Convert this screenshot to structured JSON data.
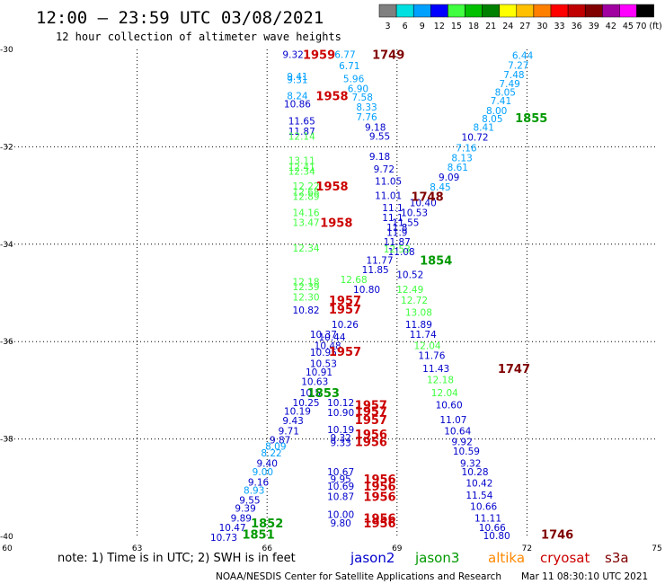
{
  "header": {
    "title": "12:00 – 23:59 UTC 03/08/2021",
    "subtitle": "12 hour collection of altimeter wave heights"
  },
  "colorbar": {
    "labels": [
      "3",
      "6",
      "9",
      "12",
      "15",
      "18",
      "21",
      "24",
      "27",
      "30",
      "33",
      "36",
      "39",
      "42",
      "45",
      "70 (ft)"
    ],
    "colors": [
      "#808080",
      "#00e0e0",
      "#00a0ff",
      "#0000ff",
      "#40ff40",
      "#00c000",
      "#008000",
      "#ffff00",
      "#ffc000",
      "#ff8000",
      "#ff0000",
      "#c00000",
      "#800000",
      "#a000a0",
      "#ff00ff",
      "#000000"
    ]
  },
  "footer": {
    "note": "note: 1) Time is in UTC; 2) SWH is in feet",
    "credit": "NOAA/NESDIS Center for Satellite Applications and Research",
    "timestamp": "Mar 11 08:30:10 UTC 2021"
  },
  "legend": [
    {
      "name": "jason2",
      "color": "#0000cc"
    },
    {
      "name": "jason3",
      "color": "#009900"
    },
    {
      "name": "altika",
      "color": "#ff8800"
    },
    {
      "name": "cryosat",
      "color": "#cc0000"
    },
    {
      "name": "s3a",
      "color": "#800000"
    }
  ],
  "chart_data": {
    "type": "scatter",
    "xlim": [
      60,
      75
    ],
    "ylim": [
      -40,
      -30
    ],
    "xticks": [
      "60",
      "63",
      "66",
      "69",
      "72",
      "75"
    ],
    "yticks": [
      "-30",
      "-32",
      "-34",
      "-36",
      "-38",
      "-40"
    ],
    "ytick_values": [
      -30,
      -32,
      -34,
      -36,
      -38,
      -40
    ],
    "xtick_values": [
      60,
      63,
      66,
      69,
      72,
      75
    ],
    "grid": true,
    "time_labels": [
      {
        "t": "1959",
        "x": 67.2,
        "y": -30.1,
        "c": "#cc0000"
      },
      {
        "t": "1749",
        "x": 68.8,
        "y": -30.1,
        "c": "#800000"
      },
      {
        "t": "1958",
        "x": 67.5,
        "y": -30.95,
        "c": "#cc0000"
      },
      {
        "t": "1855",
        "x": 72.1,
        "y": -31.4,
        "c": "#009900"
      },
      {
        "t": "1958",
        "x": 67.5,
        "y": -32.8,
        "c": "#cc0000"
      },
      {
        "t": "1748",
        "x": 69.7,
        "y": -33.02,
        "c": "#800000"
      },
      {
        "t": "1958",
        "x": 67.6,
        "y": -33.55,
        "c": "#cc0000"
      },
      {
        "t": "1854",
        "x": 69.9,
        "y": -34.33,
        "c": "#009900"
      },
      {
        "t": "1957",
        "x": 67.8,
        "y": -35.15,
        "c": "#cc0000"
      },
      {
        "t": "1957",
        "x": 67.8,
        "y": -35.33,
        "c": "#cc0000"
      },
      {
        "t": "1957",
        "x": 67.8,
        "y": -36.2,
        "c": "#cc0000"
      },
      {
        "t": "1747",
        "x": 71.7,
        "y": -36.55,
        "c": "#800000"
      },
      {
        "t": "1853",
        "x": 67.3,
        "y": -37.05,
        "c": "#009900"
      },
      {
        "t": "1957",
        "x": 68.4,
        "y": -37.3,
        "c": "#cc0000"
      },
      {
        "t": "1957",
        "x": 68.4,
        "y": -37.43,
        "c": "#cc0000"
      },
      {
        "t": "1957",
        "x": 68.4,
        "y": -37.6,
        "c": "#cc0000"
      },
      {
        "t": "1956",
        "x": 68.4,
        "y": -37.9,
        "c": "#cc0000"
      },
      {
        "t": "1956",
        "x": 68.4,
        "y": -38.05,
        "c": "#cc0000"
      },
      {
        "t": "1956",
        "x": 68.6,
        "y": -38.82,
        "c": "#cc0000"
      },
      {
        "t": "1956",
        "x": 68.6,
        "y": -38.97,
        "c": "#cc0000"
      },
      {
        "t": "1956",
        "x": 68.6,
        "y": -39.18,
        "c": "#cc0000"
      },
      {
        "t": "1956",
        "x": 68.6,
        "y": -39.62,
        "c": "#cc0000"
      },
      {
        "t": "1956",
        "x": 68.6,
        "y": -39.72,
        "c": "#cc0000"
      },
      {
        "t": "1852",
        "x": 66.0,
        "y": -39.72,
        "c": "#009900"
      },
      {
        "t": "1851",
        "x": 65.8,
        "y": -39.95,
        "c": "#009900"
      },
      {
        "t": "1746",
        "x": 72.7,
        "y": -39.95,
        "c": "#800000"
      }
    ],
    "swh_labels": [
      {
        "t": "9.32",
        "x": 66.6,
        "y": -30.1,
        "c": "#0000cc"
      },
      {
        "t": "6.77",
        "x": 67.8,
        "y": -30.1,
        "c": "#00a0ff"
      },
      {
        "t": "6.71",
        "x": 67.9,
        "y": -30.33,
        "c": "#00a0ff"
      },
      {
        "t": "9.41",
        "x": 66.7,
        "y": -30.55,
        "c": "#00a0ff"
      },
      {
        "t": "9.31",
        "x": 66.7,
        "y": -30.62,
        "c": "#00a0ff"
      },
      {
        "t": "5.96",
        "x": 68.0,
        "y": -30.6,
        "c": "#00a0ff"
      },
      {
        "t": "6.90",
        "x": 68.1,
        "y": -30.8,
        "c": "#00a0ff"
      },
      {
        "t": "8.24",
        "x": 66.7,
        "y": -30.95,
        "c": "#00a0ff"
      },
      {
        "t": "7.58",
        "x": 68.2,
        "y": -30.98,
        "c": "#00a0ff"
      },
      {
        "t": "10.86",
        "x": 66.7,
        "y": -31.12,
        "c": "#0000cc"
      },
      {
        "t": "8.33",
        "x": 68.3,
        "y": -31.18,
        "c": "#00a0ff"
      },
      {
        "t": "7.76",
        "x": 68.3,
        "y": -31.38,
        "c": "#00a0ff"
      },
      {
        "t": "11.65",
        "x": 66.8,
        "y": -31.47,
        "c": "#0000cc"
      },
      {
        "t": "9.18",
        "x": 68.5,
        "y": -31.6,
        "c": "#0000cc"
      },
      {
        "t": "11.87",
        "x": 66.8,
        "y": -31.68,
        "c": "#0000cc"
      },
      {
        "t": "12.14",
        "x": 66.8,
        "y": -31.78,
        "c": "#40ff40"
      },
      {
        "t": "9.55",
        "x": 68.6,
        "y": -31.78,
        "c": "#0000cc"
      },
      {
        "t": "9.18",
        "x": 68.6,
        "y": -32.2,
        "c": "#0000cc"
      },
      {
        "t": "13.11",
        "x": 66.8,
        "y": -32.28,
        "c": "#40ff40"
      },
      {
        "t": "12.41",
        "x": 66.8,
        "y": -32.42,
        "c": "#40ff40"
      },
      {
        "t": "12.34",
        "x": 66.8,
        "y": -32.5,
        "c": "#40ff40"
      },
      {
        "t": "9.72",
        "x": 68.7,
        "y": -32.45,
        "c": "#0000cc"
      },
      {
        "t": "11.05",
        "x": 68.8,
        "y": -32.7,
        "c": "#0000cc"
      },
      {
        "t": "12.22",
        "x": 66.9,
        "y": -32.8,
        "c": "#40ff40"
      },
      {
        "t": "12.68",
        "x": 66.9,
        "y": -32.92,
        "c": "#40ff40"
      },
      {
        "t": "12.89",
        "x": 66.9,
        "y": -33.02,
        "c": "#40ff40"
      },
      {
        "t": "11.01",
        "x": 68.8,
        "y": -33.0,
        "c": "#0000cc"
      },
      {
        "t": "11.1",
        "x": 68.9,
        "y": -33.25,
        "c": "#0000cc"
      },
      {
        "t": "14.16",
        "x": 66.9,
        "y": -33.35,
        "c": "#40ff40"
      },
      {
        "t": "11.1",
        "x": 68.9,
        "y": -33.45,
        "c": "#0000cc"
      },
      {
        "t": "13.47",
        "x": 66.9,
        "y": -33.55,
        "c": "#40ff40"
      },
      {
        "t": "11.8",
        "x": 69.0,
        "y": -33.65,
        "c": "#0000cc"
      },
      {
        "t": "11.9",
        "x": 69.0,
        "y": -33.75,
        "c": "#0000cc"
      },
      {
        "t": "11.87",
        "x": 69.0,
        "y": -33.95,
        "c": "#0000cc"
      },
      {
        "t": "12.34",
        "x": 66.9,
        "y": -34.08,
        "c": "#40ff40"
      },
      {
        "t": "11.08",
        "x": 69.1,
        "y": -34.15,
        "c": "#0000cc"
      },
      {
        "t": "11.77",
        "x": 68.6,
        "y": -34.33,
        "c": "#0000cc"
      },
      {
        "t": "11.85",
        "x": 68.5,
        "y": -34.52,
        "c": "#0000cc"
      },
      {
        "t": "10.52",
        "x": 69.3,
        "y": -34.62,
        "c": "#0000cc"
      },
      {
        "t": "12.18",
        "x": 66.9,
        "y": -34.77,
        "c": "#40ff40"
      },
      {
        "t": "12.39",
        "x": 66.9,
        "y": -34.87,
        "c": "#40ff40"
      },
      {
        "t": "12.68",
        "x": 68.0,
        "y": -34.72,
        "c": "#40ff40"
      },
      {
        "t": "10.80",
        "x": 68.3,
        "y": -34.93,
        "c": "#0000cc"
      },
      {
        "t": "12.49",
        "x": 69.3,
        "y": -34.93,
        "c": "#40ff40"
      },
      {
        "t": "12.30",
        "x": 66.9,
        "y": -35.08,
        "c": "#40ff40"
      },
      {
        "t": "12.72",
        "x": 69.4,
        "y": -35.15,
        "c": "#40ff40"
      },
      {
        "t": "10.82",
        "x": 66.9,
        "y": -35.35,
        "c": "#0000cc"
      },
      {
        "t": "13.08",
        "x": 69.5,
        "y": -35.4,
        "c": "#40ff40"
      },
      {
        "t": "10.26",
        "x": 67.8,
        "y": -35.65,
        "c": "#0000cc"
      },
      {
        "t": "11.89",
        "x": 69.5,
        "y": -35.65,
        "c": "#0000cc"
      },
      {
        "t": "10.37",
        "x": 67.3,
        "y": -35.85,
        "c": "#0000cc"
      },
      {
        "t": "11.74",
        "x": 69.6,
        "y": -35.85,
        "c": "#0000cc"
      },
      {
        "t": "10.44",
        "x": 67.5,
        "y": -35.9,
        "c": "#0000cc"
      },
      {
        "t": "10.48",
        "x": 67.4,
        "y": -36.08,
        "c": "#0000cc"
      },
      {
        "t": "10.95",
        "x": 67.3,
        "y": -36.22,
        "c": "#0000cc"
      },
      {
        "t": "12.04",
        "x": 69.7,
        "y": -36.08,
        "c": "#40ff40"
      },
      {
        "t": "11.76",
        "x": 69.8,
        "y": -36.28,
        "c": "#0000cc"
      },
      {
        "t": "10.53",
        "x": 67.3,
        "y": -36.45,
        "c": "#0000cc"
      },
      {
        "t": "11.43",
        "x": 69.9,
        "y": -36.55,
        "c": "#0000cc"
      },
      {
        "t": "10.91",
        "x": 67.2,
        "y": -36.62,
        "c": "#0000cc"
      },
      {
        "t": "12.18",
        "x": 70.0,
        "y": -36.78,
        "c": "#40ff40"
      },
      {
        "t": "10.63",
        "x": 67.1,
        "y": -36.82,
        "c": "#0000cc"
      },
      {
        "t": "10.5",
        "x": 67.0,
        "y": -37.05,
        "c": "#0000cc"
      },
      {
        "t": "12.04",
        "x": 70.1,
        "y": -37.05,
        "c": "#40ff40"
      },
      {
        "t": "10.25",
        "x": 66.9,
        "y": -37.25,
        "c": "#0000cc"
      },
      {
        "t": "10.12",
        "x": 67.7,
        "y": -37.25,
        "c": "#0000cc"
      },
      {
        "t": "10.60",
        "x": 70.2,
        "y": -37.3,
        "c": "#0000cc"
      },
      {
        "t": "10.19",
        "x": 66.7,
        "y": -37.43,
        "c": "#0000cc"
      },
      {
        "t": "10.90",
        "x": 67.7,
        "y": -37.45,
        "c": "#0000cc"
      },
      {
        "t": "9.43",
        "x": 66.6,
        "y": -37.62,
        "c": "#0000cc"
      },
      {
        "t": "11.07",
        "x": 70.3,
        "y": -37.6,
        "c": "#0000cc"
      },
      {
        "t": "9.71",
        "x": 66.5,
        "y": -37.83,
        "c": "#0000cc"
      },
      {
        "t": "10.19",
        "x": 67.7,
        "y": -37.8,
        "c": "#0000cc"
      },
      {
        "t": "10.64",
        "x": 70.4,
        "y": -37.83,
        "c": "#0000cc"
      },
      {
        "t": "9.87",
        "x": 66.3,
        "y": -38.02,
        "c": "#0000cc"
      },
      {
        "t": "9.32",
        "x": 67.7,
        "y": -37.97,
        "c": "#0000cc"
      },
      {
        "t": "9.33",
        "x": 67.7,
        "y": -38.07,
        "c": "#0000cc"
      },
      {
        "t": "9.92",
        "x": 70.5,
        "y": -38.05,
        "c": "#0000cc"
      },
      {
        "t": "8.09",
        "x": 66.2,
        "y": -38.15,
        "c": "#00a0ff"
      },
      {
        "t": "8.22",
        "x": 66.1,
        "y": -38.28,
        "c": "#00a0ff"
      },
      {
        "t": "10.59",
        "x": 70.6,
        "y": -38.25,
        "c": "#0000cc"
      },
      {
        "t": "9.40",
        "x": 66.0,
        "y": -38.5,
        "c": "#0000cc"
      },
      {
        "t": "9.32",
        "x": 70.7,
        "y": -38.5,
        "c": "#0000cc"
      },
      {
        "t": "9.00",
        "x": 65.9,
        "y": -38.67,
        "c": "#00a0ff"
      },
      {
        "t": "10.67",
        "x": 67.7,
        "y": -38.67,
        "c": "#0000cc"
      },
      {
        "t": "10.28",
        "x": 70.8,
        "y": -38.67,
        "c": "#0000cc"
      },
      {
        "t": "9.16",
        "x": 65.8,
        "y": -38.88,
        "c": "#0000cc"
      },
      {
        "t": "9.95",
        "x": 67.7,
        "y": -38.82,
        "c": "#0000cc"
      },
      {
        "t": "10.69",
        "x": 67.7,
        "y": -38.97,
        "c": "#0000cc"
      },
      {
        "t": "10.42",
        "x": 70.9,
        "y": -38.9,
        "c": "#0000cc"
      },
      {
        "t": "8.93",
        "x": 65.7,
        "y": -39.05,
        "c": "#00a0ff"
      },
      {
        "t": "11.54",
        "x": 70.9,
        "y": -39.15,
        "c": "#0000cc"
      },
      {
        "t": "9.55",
        "x": 65.6,
        "y": -39.25,
        "c": "#0000cc"
      },
      {
        "t": "10.87",
        "x": 67.7,
        "y": -39.18,
        "c": "#0000cc"
      },
      {
        "t": "9.39",
        "x": 65.5,
        "y": -39.42,
        "c": "#0000cc"
      },
      {
        "t": "10.66",
        "x": 71.0,
        "y": -39.38,
        "c": "#0000cc"
      },
      {
        "t": "9.89",
        "x": 65.4,
        "y": -39.62,
        "c": "#0000cc"
      },
      {
        "t": "10.00",
        "x": 67.7,
        "y": -39.55,
        "c": "#0000cc"
      },
      {
        "t": "9.80",
        "x": 67.7,
        "y": -39.72,
        "c": "#0000cc"
      },
      {
        "t": "11.11",
        "x": 71.1,
        "y": -39.62,
        "c": "#0000cc"
      },
      {
        "t": "10.47",
        "x": 65.2,
        "y": -39.82,
        "c": "#0000cc"
      },
      {
        "t": "10.66",
        "x": 71.2,
        "y": -39.82,
        "c": "#0000cc"
      },
      {
        "t": "10.73",
        "x": 65.0,
        "y": -40.02,
        "c": "#0000cc"
      },
      {
        "t": "10.80",
        "x": 71.3,
        "y": -39.98,
        "c": "#0000cc"
      },
      {
        "t": "6.44",
        "x": 71.9,
        "y": -30.12,
        "c": "#00a0ff"
      },
      {
        "t": "7.27",
        "x": 71.8,
        "y": -30.32,
        "c": "#00a0ff"
      },
      {
        "t": "7.48",
        "x": 71.7,
        "y": -30.52,
        "c": "#00a0ff"
      },
      {
        "t": "7.49",
        "x": 71.6,
        "y": -30.7,
        "c": "#00a0ff"
      },
      {
        "t": "8.05",
        "x": 71.5,
        "y": -30.88,
        "c": "#00a0ff"
      },
      {
        "t": "7.41",
        "x": 71.4,
        "y": -31.05,
        "c": "#00a0ff"
      },
      {
        "t": "8.00",
        "x": 71.3,
        "y": -31.25,
        "c": "#00a0ff"
      },
      {
        "t": "8.05",
        "x": 71.2,
        "y": -31.42,
        "c": "#00a0ff"
      },
      {
        "t": "8.41",
        "x": 71.0,
        "y": -31.6,
        "c": "#00a0ff"
      },
      {
        "t": "10.72",
        "x": 70.8,
        "y": -31.8,
        "c": "#0000cc"
      },
      {
        "t": "7.16",
        "x": 70.6,
        "y": -32.02,
        "c": "#00a0ff"
      },
      {
        "t": "8.13",
        "x": 70.5,
        "y": -32.22,
        "c": "#00a0ff"
      },
      {
        "t": "8.61",
        "x": 70.4,
        "y": -32.42,
        "c": "#00a0ff"
      },
      {
        "t": "9.09",
        "x": 70.2,
        "y": -32.62,
        "c": "#0000cc"
      },
      {
        "t": "8.45",
        "x": 70.0,
        "y": -32.82,
        "c": "#00a0ff"
      },
      {
        "t": "10.40",
        "x": 69.6,
        "y": -33.15,
        "c": "#0000cc"
      },
      {
        "t": "10.53",
        "x": 69.4,
        "y": -33.35,
        "c": "#0000cc"
      },
      {
        "t": "11.55",
        "x": 69.2,
        "y": -33.55,
        "c": "#0000cc"
      },
      {
        "t": "12.53",
        "x": 69.0,
        "y": -34.1,
        "c": "#40ff40"
      }
    ]
  }
}
